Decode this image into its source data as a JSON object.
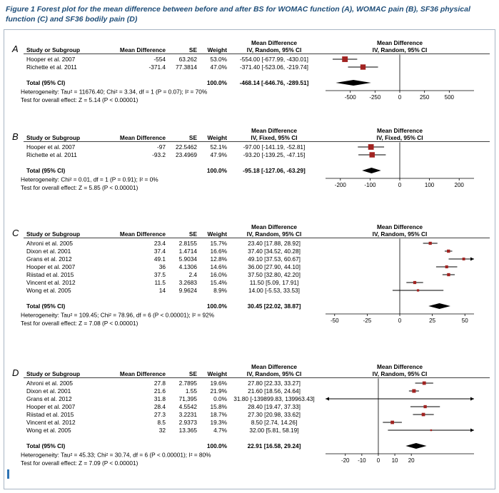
{
  "caption": "Figure 1 Forest plot for the mean difference between before and after BS for WOMAC function (A), WOMAC pain (B), SF36 physical function (C) and SF36 bodily pain (D)",
  "colors": {
    "marker": "#a12321",
    "diamond": "#000000",
    "line": "#000000",
    "caption": "#1f4e79",
    "border": "#a8b6c4",
    "cursor": "#2e74b5"
  },
  "chart_data": [
    {
      "type": "forest",
      "panel": "A",
      "title": "WOMAC function",
      "header_effect": "Mean Difference",
      "effect_model": "IV, Random, 95% CI",
      "columns": {
        "study": "Study or Subgroup",
        "md": "Mean Difference",
        "se": "SE",
        "weight": "Weight"
      },
      "studies": [
        {
          "name": "Hooper et al. 2007",
          "md": "-554",
          "se": "63.262",
          "weight_label": "53.0%",
          "weight": 53.0,
          "ci_label": "-554.00 [-677.99, -430.01]",
          "est": -554,
          "lo": -677.99,
          "hi": -430.01
        },
        {
          "name": "Richette et al. 2011",
          "md": "-371.4",
          "se": "77.3814",
          "weight_label": "47.0%",
          "weight": 47.0,
          "ci_label": "-371.40 [-523.06, -219.74]",
          "est": -371.4,
          "lo": -523.06,
          "hi": -219.74
        }
      ],
      "total": {
        "label": "Total (95% CI)",
        "weight_label": "100.0%",
        "ci_label": "-468.14 [-646.76, -289.51]",
        "est": -468.14,
        "lo": -646.76,
        "hi": -289.51
      },
      "heterogeneity": "Heterogeneity: Tau² = 11676.40; Chi² = 3.34, df = 1 (P = 0.07); I² = 70%",
      "overall_test": "Test for overall effect: Z = 5.14 (P < 0.00001)",
      "axis": {
        "min": -750,
        "max": 750,
        "ticks": [
          -500,
          -250,
          0,
          250,
          500
        ]
      }
    },
    {
      "type": "forest",
      "panel": "B",
      "title": "WOMAC pain",
      "header_effect": "Mean Difference",
      "effect_model": "IV, Fixed, 95% CI",
      "columns": {
        "study": "Study or Subgroup",
        "md": "Mean Difference",
        "se": "SE",
        "weight": "Weight"
      },
      "studies": [
        {
          "name": "Hooper et al. 2007",
          "md": "-97",
          "se": "22.5462",
          "weight_label": "52.1%",
          "weight": 52.1,
          "ci_label": "-97.00 [-141.19, -52.81]",
          "est": -97,
          "lo": -141.19,
          "hi": -52.81
        },
        {
          "name": "Richette et al. 2011",
          "md": "-93.2",
          "se": "23.4969",
          "weight_label": "47.9%",
          "weight": 47.9,
          "ci_label": "-93.20 [-139.25, -47.15]",
          "est": -93.2,
          "lo": -139.25,
          "hi": -47.15
        }
      ],
      "total": {
        "label": "Total (95% CI)",
        "weight_label": "100.0%",
        "ci_label": "-95.18 [-127.06, -63.29]",
        "est": -95.18,
        "lo": -127.06,
        "hi": -63.29
      },
      "heterogeneity": "Heterogeneity: Chi² = 0.01, df = 1 (P = 0.91); I² = 0%",
      "overall_test": "Test for overall effect: Z = 5.85 (P < 0.00001)",
      "axis": {
        "min": -250,
        "max": 250,
        "ticks": [
          -200,
          -100,
          0,
          100,
          200
        ]
      }
    },
    {
      "type": "forest",
      "panel": "C",
      "title": "SF36 physical function",
      "header_effect": "Mean Difference",
      "effect_model": "IV, Random, 95% CI",
      "columns": {
        "study": "Study or Subgroup",
        "md": "Mean Difference",
        "se": "SE",
        "weight": "Weight"
      },
      "studies": [
        {
          "name": "Ahroni et al. 2005",
          "md": "23.4",
          "se": "2.8155",
          "weight_label": "15.7%",
          "weight": 15.7,
          "ci_label": "23.40 [17.88, 28.92]",
          "est": 23.4,
          "lo": 17.88,
          "hi": 28.92
        },
        {
          "name": "Dixon et al. 2001",
          "md": "37.4",
          "se": "1.4714",
          "weight_label": "16.6%",
          "weight": 16.6,
          "ci_label": "37.40 [34.52, 40.28]",
          "est": 37.4,
          "lo": 34.52,
          "hi": 40.28
        },
        {
          "name": "Grans et al. 2012",
          "md": "49.1",
          "se": "5.9034",
          "weight_label": "12.8%",
          "weight": 12.8,
          "ci_label": "49.10 [37.53, 60.67]",
          "est": 49.1,
          "lo": 37.53,
          "hi": 60.67
        },
        {
          "name": "Hooper et al. 2007",
          "md": "36",
          "se": "4.1306",
          "weight_label": "14.6%",
          "weight": 14.6,
          "ci_label": "36.00 [27.90, 44.10]",
          "est": 36,
          "lo": 27.9,
          "hi": 44.1
        },
        {
          "name": "Riistad et al. 2015",
          "md": "37.5",
          "se": "2.4",
          "weight_label": "16.0%",
          "weight": 16.0,
          "ci_label": "37.50 [32.80, 42.20]",
          "est": 37.5,
          "lo": 32.8,
          "hi": 42.2
        },
        {
          "name": "Vincent et al. 2012",
          "md": "11.5",
          "se": "3.2683",
          "weight_label": "15.4%",
          "weight": 15.4,
          "ci_label": "11.50 [5.09, 17.91]",
          "est": 11.5,
          "lo": 5.09,
          "hi": 17.91
        },
        {
          "name": "Wong et al. 2005",
          "md": "14",
          "se": "9.9624",
          "weight_label": "8.9%",
          "weight": 8.9,
          "ci_label": "14.00 [-5.53, 33.53]",
          "est": 14,
          "lo": -5.53,
          "hi": 33.53
        }
      ],
      "total": {
        "label": "Total (95% CI)",
        "weight_label": "100.0%",
        "ci_label": "30.45 [22.02, 38.87]",
        "est": 30.45,
        "lo": 22.02,
        "hi": 38.87
      },
      "heterogeneity": "Heterogeneity: Tau² = 109.45; Chi² = 78.96, df = 6 (P < 0.00001); I² = 92%",
      "overall_test": "Test for overall effect: Z = 7.08 (P < 0.00001)",
      "axis": {
        "min": -57,
        "max": 57,
        "ticks": [
          -50,
          -25,
          0,
          25,
          50
        ]
      }
    },
    {
      "type": "forest",
      "panel": "D",
      "title": "SF36 bodily pain",
      "header_effect": "Mean Difference",
      "effect_model": "IV, Random, 95% CI",
      "columns": {
        "study": "Study or Subgroup",
        "md": "Mean Difference",
        "se": "SE",
        "weight": "Weight"
      },
      "studies": [
        {
          "name": "Ahroni et al. 2005",
          "md": "27.8",
          "se": "2.7895",
          "weight_label": "19.6%",
          "weight": 19.6,
          "ci_label": "27.80 [22.33, 33.27]",
          "est": 27.8,
          "lo": 22.33,
          "hi": 33.27
        },
        {
          "name": "Dixon et al. 2001",
          "md": "21.6",
          "se": "1.55",
          "weight_label": "21.9%",
          "weight": 21.9,
          "ci_label": "21.60 [18.56, 24.64]",
          "est": 21.6,
          "lo": 18.56,
          "hi": 24.64
        },
        {
          "name": "Grans et al. 2012",
          "md": "31.8",
          "se": "71,395",
          "weight_label": "0.0%",
          "weight": 0.0,
          "ci_label": "31.80 [-139899.83, 139963.43]",
          "est": 31.8,
          "lo": -139899.83,
          "hi": 139963.43
        },
        {
          "name": "Hooper et al. 2007",
          "md": "28.4",
          "se": "4.5542",
          "weight_label": "15.8%",
          "weight": 15.8,
          "ci_label": "28.40 [19.47, 37.33]",
          "est": 28.4,
          "lo": 19.47,
          "hi": 37.33
        },
        {
          "name": "Riistad et al. 2015",
          "md": "27.3",
          "se": "3.2231",
          "weight_label": "18.7%",
          "weight": 18.7,
          "ci_label": "27.30 [20.98, 33.62]",
          "est": 27.3,
          "lo": 20.98,
          "hi": 33.62
        },
        {
          "name": "Vincent et al. 2012",
          "md": "8.5",
          "se": "2.9373",
          "weight_label": "19.3%",
          "weight": 19.3,
          "ci_label": "8.50 [2.74, 14.26]",
          "est": 8.5,
          "lo": 2.74,
          "hi": 14.26
        },
        {
          "name": "Wong et al. 2005",
          "md": "32",
          "se": "13.365",
          "weight_label": "4.7%",
          "weight": 4.7,
          "ci_label": "32.00 [5.81, 58.19]",
          "est": 32,
          "lo": 5.81,
          "hi": 58.19
        }
      ],
      "total": {
        "label": "Total (95% CI)",
        "weight_label": "100.0%",
        "ci_label": "22.91 [16.58, 29.24]",
        "est": 22.91,
        "lo": 16.58,
        "hi": 29.24
      },
      "heterogeneity": "Heterogeneity: Tau² = 45.33; Chi² = 30.74, df = 6 (P < 0.00001); I² = 80%",
      "overall_test": "Test for overall effect: Z = 7.09 (P < 0.00001)",
      "axis": {
        "min": -32,
        "max": 58,
        "ticks": [
          -20,
          -10,
          0,
          10,
          20
        ]
      }
    }
  ]
}
